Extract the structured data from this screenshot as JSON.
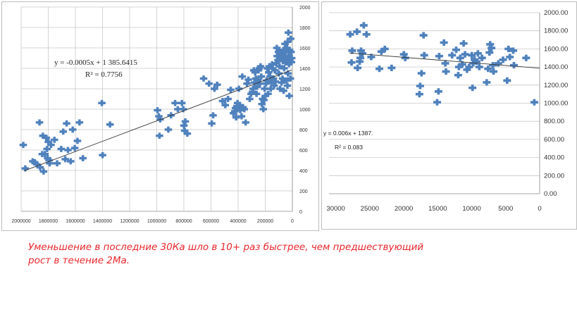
{
  "chart_data": [
    {
      "type": "scatter",
      "title": "",
      "xlabel": "",
      "ylabel": "",
      "xlim": [
        2000000,
        0
      ],
      "ylim": [
        0,
        2000
      ],
      "x_ticks": [
        "2000000",
        "1800000",
        "1600000",
        "1400000",
        "1200000",
        "1000000",
        "800000",
        "600000",
        "400000",
        "200000",
        "0"
      ],
      "y_ticks": [
        "0",
        "200",
        "400",
        "600",
        "800",
        "1000",
        "1200",
        "1400",
        "1600",
        "1800",
        "2000"
      ],
      "y_axis_side": "right",
      "grid": true,
      "annotations": {
        "equation": "y = -0.0005x + 1 385.6415",
        "r2": "R² = 0.7756"
      },
      "trendline": {
        "slope": -0.0005,
        "intercept": 1385.6415
      },
      "points": [
        [
          1990000,
          650
        ],
        [
          1975000,
          420
        ],
        [
          1920000,
          490
        ],
        [
          1905000,
          480
        ],
        [
          1890000,
          460
        ],
        [
          1870000,
          870
        ],
        [
          1865000,
          430
        ],
        [
          1850000,
          560
        ],
        [
          1845000,
          740
        ],
        [
          1840000,
          390
        ],
        [
          1830000,
          560
        ],
        [
          1820000,
          720
        ],
        [
          1815000,
          610
        ],
        [
          1810000,
          520
        ],
        [
          1805000,
          680
        ],
        [
          1800000,
          500
        ],
        [
          1795000,
          470
        ],
        [
          1785000,
          650
        ],
        [
          1760000,
          700
        ],
        [
          1740000,
          470
        ],
        [
          1710000,
          610
        ],
        [
          1695000,
          780
        ],
        [
          1680000,
          510
        ],
        [
          1670000,
          860
        ],
        [
          1660000,
          600
        ],
        [
          1640000,
          490
        ],
        [
          1625000,
          800
        ],
        [
          1610000,
          620
        ],
        [
          1590000,
          690
        ],
        [
          1575000,
          870
        ],
        [
          1550000,
          520
        ],
        [
          1410000,
          1060
        ],
        [
          1405000,
          550
        ],
        [
          1350000,
          850
        ],
        [
          1000000,
          990
        ],
        [
          990000,
          930
        ],
        [
          985000,
          740
        ],
        [
          980000,
          900
        ],
        [
          920000,
          800
        ],
        [
          900000,
          940
        ],
        [
          870000,
          1060
        ],
        [
          850000,
          1000
        ],
        [
          820000,
          1060
        ],
        [
          810000,
          1000
        ],
        [
          805000,
          840
        ],
        [
          800000,
          790
        ],
        [
          795000,
          880
        ],
        [
          780000,
          760
        ],
        [
          660000,
          1300
        ],
        [
          620000,
          1250
        ],
        [
          600000,
          860
        ],
        [
          590000,
          940
        ],
        [
          580000,
          1200
        ],
        [
          560000,
          1240
        ],
        [
          520000,
          1080
        ],
        [
          500000,
          1040
        ],
        [
          480000,
          1100
        ],
        [
          460000,
          1190
        ],
        [
          440000,
          960
        ],
        [
          430000,
          980
        ],
        [
          425000,
          1010
        ],
        [
          420000,
          920
        ],
        [
          415000,
          1030
        ],
        [
          410000,
          1060
        ],
        [
          400000,
          1200
        ],
        [
          395000,
          1040
        ],
        [
          390000,
          990
        ],
        [
          380000,
          930
        ],
        [
          375000,
          1320
        ],
        [
          370000,
          1020
        ],
        [
          360000,
          1000
        ],
        [
          350000,
          870
        ],
        [
          340000,
          1250
        ],
        [
          330000,
          1290
        ],
        [
          320000,
          1100
        ],
        [
          310000,
          1150
        ],
        [
          300000,
          1170
        ],
        [
          295000,
          1200
        ],
        [
          290000,
          1380
        ],
        [
          285000,
          1260
        ],
        [
          280000,
          1360
        ],
        [
          275000,
          1300
        ],
        [
          270000,
          1150
        ],
        [
          265000,
          1220
        ],
        [
          260000,
          1290
        ],
        [
          255000,
          1380
        ],
        [
          250000,
          1400
        ],
        [
          245000,
          1250
        ],
        [
          240000,
          1420
        ],
        [
          235000,
          1320
        ],
        [
          230000,
          1050
        ],
        [
          225000,
          1100
        ],
        [
          220000,
          1000
        ],
        [
          215000,
          1090
        ],
        [
          210000,
          1200
        ],
        [
          205000,
          1130
        ],
        [
          200000,
          1250
        ],
        [
          195000,
          1280
        ],
        [
          190000,
          1400
        ],
        [
          185000,
          1150
        ],
        [
          180000,
          1360
        ],
        [
          175000,
          1420
        ],
        [
          170000,
          1320
        ],
        [
          165000,
          1200
        ],
        [
          160000,
          1260
        ],
        [
          155000,
          1440
        ],
        [
          150000,
          1400
        ],
        [
          145000,
          1300
        ],
        [
          140000,
          1230
        ],
        [
          135000,
          1380
        ],
        [
          130000,
          1270
        ],
        [
          125000,
          1450
        ],
        [
          120000,
          1600
        ],
        [
          118000,
          1520
        ],
        [
          112000,
          1480
        ],
        [
          108000,
          1560
        ],
        [
          105000,
          1350
        ],
        [
          100000,
          1420
        ],
        [
          96000,
          1200
        ],
        [
          92000,
          1560
        ],
        [
          88000,
          1500
        ],
        [
          85000,
          1260
        ],
        [
          82000,
          1540
        ],
        [
          78000,
          1300
        ],
        [
          75000,
          1470
        ],
        [
          72000,
          1580
        ],
        [
          70000,
          1180
        ],
        [
          66000,
          1400
        ],
        [
          62000,
          1520
        ],
        [
          60000,
          1640
        ],
        [
          56000,
          1460
        ],
        [
          54000,
          1560
        ],
        [
          50000,
          1280
        ],
        [
          48000,
          1480
        ],
        [
          45000,
          1600
        ],
        [
          42000,
          1230
        ],
        [
          40000,
          1660
        ],
        [
          38000,
          1350
        ],
        [
          35000,
          1750
        ],
        [
          33000,
          1520
        ],
        [
          30000,
          1440
        ],
        [
          28000,
          1130
        ],
        [
          26000,
          1580
        ],
        [
          24000,
          1480
        ],
        [
          20000,
          1300
        ],
        [
          18000,
          1690
        ],
        [
          15000,
          1560
        ],
        [
          12000,
          1460
        ],
        [
          10000,
          1500
        ]
      ]
    },
    {
      "type": "scatter",
      "title": "",
      "xlabel": "",
      "ylabel": "",
      "xlim": [
        31000,
        0
      ],
      "ylim": [
        0,
        2000
      ],
      "x_ticks": [
        "30000",
        "25000",
        "20000",
        "15000",
        "10000",
        "5000",
        "0"
      ],
      "y_ticks": [
        "0.00",
        "200.00",
        "400.00",
        "600.00",
        "800.00",
        "1000.00",
        "1200.00",
        "1400.00",
        "1600.00",
        "1800.00",
        "2000.00"
      ],
      "y_axis_side": "right",
      "grid": true,
      "annotations": {
        "equation": "y = 0.006x + 1387.",
        "r2": "R² = 0.083"
      },
      "trendline": {
        "slope": 0.006,
        "intercept": 1387
      },
      "points": [
        [
          28000,
          1760
        ],
        [
          27800,
          1450
        ],
        [
          27700,
          1580
        ],
        [
          27000,
          1790
        ],
        [
          26900,
          1390
        ],
        [
          26600,
          1460
        ],
        [
          26500,
          1500
        ],
        [
          26400,
          1580
        ],
        [
          26200,
          1550
        ],
        [
          26000,
          1860
        ],
        [
          25600,
          1760
        ],
        [
          24900,
          1510
        ],
        [
          23700,
          1380
        ],
        [
          23400,
          1570
        ],
        [
          22900,
          1600
        ],
        [
          21900,
          1390
        ],
        [
          20100,
          1540
        ],
        [
          19900,
          1500
        ],
        [
          17800,
          1100
        ],
        [
          17700,
          1190
        ],
        [
          17500,
          1330
        ],
        [
          17200,
          1750
        ],
        [
          17100,
          1530
        ],
        [
          15200,
          1010
        ],
        [
          15000,
          1130
        ],
        [
          14900,
          1520
        ],
        [
          14200,
          1670
        ],
        [
          14000,
          1440
        ],
        [
          13900,
          1350
        ],
        [
          13000,
          1530
        ],
        [
          12400,
          1590
        ],
        [
          12100,
          1310
        ],
        [
          12000,
          1400
        ],
        [
          11800,
          1500
        ],
        [
          11500,
          1430
        ],
        [
          11300,
          1660
        ],
        [
          11100,
          1540
        ],
        [
          10800,
          1370
        ],
        [
          10500,
          1400
        ],
        [
          10100,
          1530
        ],
        [
          10000,
          1170
        ],
        [
          9900,
          1440
        ],
        [
          9700,
          1480
        ],
        [
          9400,
          1460
        ],
        [
          9200,
          1550
        ],
        [
          9000,
          1400
        ],
        [
          8600,
          1500
        ],
        [
          7900,
          1230
        ],
        [
          7700,
          1380
        ],
        [
          7500,
          1560
        ],
        [
          7400,
          1650
        ],
        [
          7200,
          1610
        ],
        [
          7000,
          1420
        ],
        [
          6900,
          1350
        ],
        [
          6200,
          1440
        ],
        [
          5500,
          1480
        ],
        [
          4900,
          1250
        ],
        [
          4700,
          1600
        ],
        [
          4500,
          1510
        ],
        [
          4000,
          1580
        ],
        [
          3900,
          1420
        ],
        [
          2100,
          1500
        ],
        [
          900,
          1010
        ]
      ]
    }
  ],
  "caption": {
    "line1": "Уменьшение в последние 30Ка шло в 10+ раз быстрее, чем предшествующий",
    "line2": "рост в течение 2Ма."
  }
}
